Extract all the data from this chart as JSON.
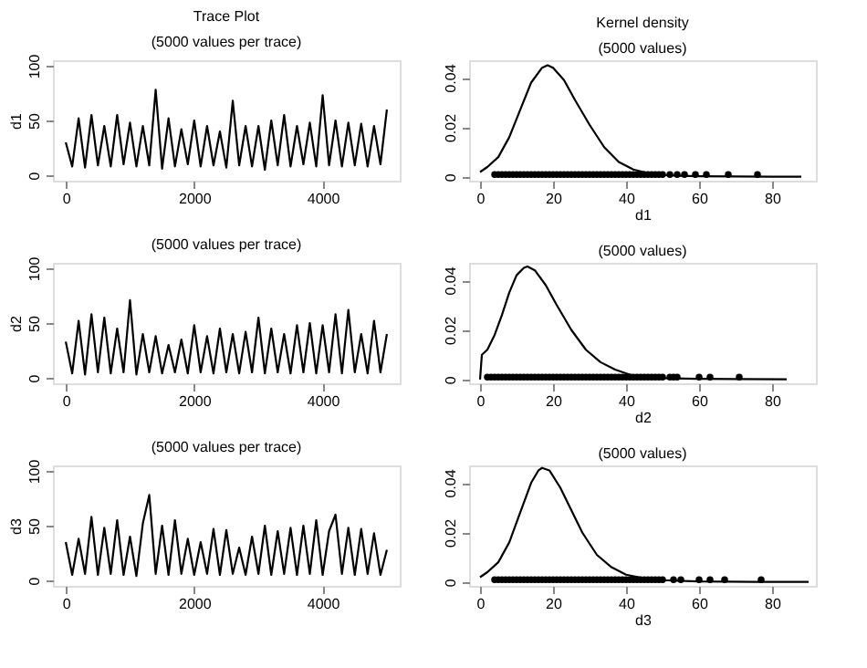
{
  "chart_data": [
    {
      "type": "line",
      "title": "Trace Plot",
      "subtitle": "(5000 values per trace)",
      "ylabel": "d1",
      "xlim": [
        -200,
        5200
      ],
      "ylim": [
        -5,
        105
      ],
      "xticks": [
        0,
        2000,
        4000
      ],
      "yticks": [
        0,
        50,
        100
      ],
      "grid": false,
      "line_style": "solid",
      "series": [
        {
          "color": "#000000",
          "x": [
            0,
            100,
            200,
            300,
            400,
            500,
            600,
            700,
            800,
            900,
            1000,
            1100,
            1200,
            1300,
            1400,
            1500,
            1600,
            1700,
            1800,
            1900,
            2000,
            2100,
            2200,
            2300,
            2400,
            2500,
            2600,
            2700,
            2800,
            2900,
            3000,
            3100,
            3200,
            3300,
            3400,
            3500,
            3600,
            3700,
            3800,
            3900,
            4000,
            4100,
            4200,
            4300,
            4400,
            4500,
            4600,
            4700,
            4800,
            4900,
            5000
          ],
          "values": [
            30,
            8,
            52,
            7,
            55,
            9,
            45,
            8,
            55,
            10,
            48,
            8,
            45,
            9,
            78,
            6,
            52,
            8,
            42,
            10,
            50,
            8,
            45,
            9,
            40,
            7,
            68,
            9,
            45,
            8,
            45,
            5,
            50,
            9,
            55,
            8,
            45,
            10,
            48,
            8,
            73,
            9,
            50,
            8,
            48,
            9,
            47,
            8,
            45,
            10,
            60
          ]
        }
      ]
    },
    {
      "type": "line",
      "title": "Kernel density",
      "subtitle": "(5000 values)",
      "xlabel": "d1",
      "xlim": [
        -3,
        92
      ],
      "ylim": [
        -0.0015,
        0.047
      ],
      "xticks": [
        0,
        20,
        40,
        60,
        80
      ],
      "yticks": [
        0,
        0.02,
        0.04
      ],
      "grid": false,
      "line_style": "solid",
      "series": [
        {
          "color": "#000000",
          "x": [
            0,
            2,
            5,
            8,
            11,
            14,
            17,
            18.5,
            20,
            23,
            26,
            30,
            34,
            38,
            42,
            46,
            50,
            55,
            60,
            70,
            80,
            88
          ],
          "values": [
            0.002,
            0.004,
            0.008,
            0.016,
            0.027,
            0.038,
            0.044,
            0.045,
            0.044,
            0.039,
            0.031,
            0.021,
            0.012,
            0.006,
            0.003,
            0.0015,
            0.0008,
            0.0005,
            0.0003,
            0.0002,
            0.0001,
            0.0001
          ]
        },
        {
          "type": "scatter",
          "marker": "circle",
          "color": "#000000",
          "x": [
            4,
            5,
            6,
            7,
            8,
            9,
            10,
            11,
            12,
            13,
            14,
            15,
            16,
            17,
            18,
            19,
            20,
            21,
            22,
            23,
            24,
            25,
            26,
            27,
            28,
            29,
            30,
            31,
            32,
            33,
            34,
            35,
            36,
            37,
            38,
            39,
            40,
            41,
            42,
            43,
            44,
            45,
            46,
            47,
            48,
            49,
            50,
            52,
            54,
            56,
            59,
            62,
            68,
            76
          ],
          "values": [
            0.001,
            0.001,
            0.001,
            0.001,
            0.001,
            0.001,
            0.001,
            0.001,
            0.001,
            0.001,
            0.001,
            0.001,
            0.001,
            0.001,
            0.001,
            0.001,
            0.001,
            0.001,
            0.001,
            0.001,
            0.001,
            0.001,
            0.001,
            0.001,
            0.001,
            0.001,
            0.001,
            0.001,
            0.001,
            0.001,
            0.001,
            0.001,
            0.001,
            0.001,
            0.001,
            0.001,
            0.001,
            0.001,
            0.001,
            0.001,
            0.001,
            0.001,
            0.001,
            0.001,
            0.001,
            0.001,
            0.001,
            0.001,
            0.001,
            0.001,
            0.001,
            0.001,
            0.001,
            0.001
          ]
        }
      ]
    },
    {
      "type": "line",
      "subtitle": "(5000 values per trace)",
      "ylabel": "d2",
      "xlim": [
        -200,
        5200
      ],
      "ylim": [
        -5,
        105
      ],
      "xticks": [
        0,
        2000,
        4000
      ],
      "yticks": [
        0,
        50,
        100
      ],
      "grid": false,
      "line_style": "solid",
      "series": [
        {
          "color": "#000000",
          "x": [
            0,
            100,
            200,
            300,
            400,
            500,
            600,
            700,
            800,
            900,
            1000,
            1100,
            1200,
            1300,
            1400,
            1500,
            1600,
            1700,
            1800,
            1900,
            2000,
            2100,
            2200,
            2300,
            2400,
            2500,
            2600,
            2700,
            2800,
            2900,
            3000,
            3100,
            3200,
            3300,
            3400,
            3500,
            3600,
            3700,
            3800,
            3900,
            4000,
            4100,
            4200,
            4300,
            4400,
            4500,
            4600,
            4700,
            4800,
            4900,
            5000
          ],
          "values": [
            33,
            4,
            52,
            3,
            58,
            5,
            55,
            4,
            45,
            5,
            71,
            3,
            40,
            5,
            38,
            4,
            30,
            5,
            35,
            4,
            48,
            5,
            38,
            4,
            45,
            5,
            40,
            4,
            42,
            5,
            55,
            4,
            45,
            5,
            40,
            4,
            48,
            5,
            50,
            4,
            48,
            5,
            58,
            4,
            62,
            5,
            40,
            4,
            52,
            5,
            40
          ]
        }
      ]
    },
    {
      "type": "line",
      "subtitle": "(5000 values)",
      "xlabel": "d2",
      "xlim": [
        -3,
        92
      ],
      "ylim": [
        -0.0015,
        0.047
      ],
      "xticks": [
        0,
        20,
        40,
        60,
        80
      ],
      "yticks": [
        0,
        0.02,
        0.04
      ],
      "grid": false,
      "line_style": "solid",
      "series": [
        {
          "color": "#000000",
          "x": [
            0,
            0.5,
            2,
            4,
            6,
            8,
            10,
            12,
            13,
            15,
            18,
            21,
            25,
            29,
            33,
            37,
            41,
            45,
            50,
            60,
            70,
            84
          ],
          "values": [
            0.0,
            0.01,
            0.012,
            0.018,
            0.026,
            0.035,
            0.042,
            0.045,
            0.0455,
            0.044,
            0.038,
            0.03,
            0.02,
            0.012,
            0.007,
            0.004,
            0.002,
            0.001,
            0.0006,
            0.0003,
            0.0002,
            0.0001
          ]
        },
        {
          "type": "scatter",
          "marker": "circle",
          "color": "#000000",
          "x": [
            2,
            3,
            4,
            5,
            6,
            7,
            8,
            9,
            10,
            11,
            12,
            13,
            14,
            15,
            16,
            17,
            18,
            19,
            20,
            21,
            22,
            23,
            24,
            25,
            26,
            27,
            28,
            29,
            30,
            31,
            32,
            33,
            34,
            35,
            36,
            37,
            38,
            39,
            40,
            41,
            42,
            43,
            44,
            45,
            46,
            47,
            48,
            49,
            50,
            52,
            53,
            54,
            60,
            63,
            71
          ],
          "values": [
            0.001,
            0.001,
            0.001,
            0.001,
            0.001,
            0.001,
            0.001,
            0.001,
            0.001,
            0.001,
            0.001,
            0.001,
            0.001,
            0.001,
            0.001,
            0.001,
            0.001,
            0.001,
            0.001,
            0.001,
            0.001,
            0.001,
            0.001,
            0.001,
            0.001,
            0.001,
            0.001,
            0.001,
            0.001,
            0.001,
            0.001,
            0.001,
            0.001,
            0.001,
            0.001,
            0.001,
            0.001,
            0.001,
            0.001,
            0.001,
            0.001,
            0.001,
            0.001,
            0.001,
            0.001,
            0.001,
            0.001,
            0.001,
            0.001,
            0.001,
            0.001,
            0.001,
            0.001,
            0.001,
            0.001
          ]
        }
      ]
    },
    {
      "type": "line",
      "subtitle": "(5000 values per trace)",
      "ylabel": "d3",
      "xlim": [
        -200,
        5200
      ],
      "ylim": [
        -5,
        105
      ],
      "xticks": [
        0,
        2000,
        4000
      ],
      "yticks": [
        0,
        50,
        100
      ],
      "grid": false,
      "line_style": "solid",
      "series": [
        {
          "color": "#000000",
          "x": [
            0,
            100,
            200,
            300,
            400,
            500,
            600,
            700,
            800,
            900,
            1000,
            1100,
            1200,
            1300,
            1400,
            1500,
            1600,
            1700,
            1800,
            1900,
            2000,
            2100,
            2200,
            2300,
            2400,
            2500,
            2600,
            2700,
            2800,
            2900,
            3000,
            3100,
            3200,
            3300,
            3400,
            3500,
            3600,
            3700,
            3800,
            3900,
            4000,
            4100,
            4200,
            4300,
            4400,
            4500,
            4600,
            4700,
            4800,
            4900,
            5000
          ],
          "values": [
            35,
            5,
            38,
            6,
            58,
            5,
            48,
            6,
            55,
            5,
            40,
            4,
            52,
            78,
            6,
            50,
            5,
            55,
            6,
            38,
            5,
            35,
            6,
            47,
            5,
            46,
            6,
            30,
            5,
            40,
            6,
            50,
            5,
            45,
            6,
            48,
            5,
            50,
            6,
            55,
            5,
            45,
            60,
            6,
            48,
            5,
            47,
            6,
            43,
            5,
            28
          ]
        }
      ]
    },
    {
      "type": "line",
      "subtitle": "(5000 values)",
      "xlabel": "d3",
      "xlim": [
        -3,
        92
      ],
      "ylim": [
        -0.0015,
        0.047
      ],
      "xticks": [
        0,
        20,
        40,
        60,
        80
      ],
      "yticks": [
        0,
        0.02,
        0.04
      ],
      "grid": false,
      "line_style": "solid",
      "series": [
        {
          "color": "#000000",
          "x": [
            0,
            2,
            5,
            8,
            11,
            14,
            16,
            17,
            19,
            22,
            25,
            28,
            32,
            36,
            40,
            45,
            50,
            60,
            75,
            90
          ],
          "values": [
            0.002,
            0.004,
            0.008,
            0.016,
            0.028,
            0.04,
            0.045,
            0.046,
            0.045,
            0.038,
            0.029,
            0.02,
            0.011,
            0.006,
            0.003,
            0.0015,
            0.0008,
            0.0003,
            0.0001,
            0.0001
          ]
        },
        {
          "type": "scatter",
          "marker": "circle",
          "color": "#000000",
          "x": [
            4,
            5,
            6,
            7,
            8,
            9,
            10,
            11,
            12,
            13,
            14,
            15,
            16,
            17,
            18,
            19,
            20,
            21,
            22,
            23,
            24,
            25,
            26,
            27,
            28,
            29,
            30,
            31,
            32,
            33,
            34,
            35,
            36,
            37,
            38,
            39,
            40,
            41,
            42,
            43,
            44,
            45,
            46,
            47,
            48,
            49,
            50,
            53,
            55,
            60,
            63,
            67,
            77
          ],
          "values": [
            0.001,
            0.001,
            0.001,
            0.001,
            0.001,
            0.001,
            0.001,
            0.001,
            0.001,
            0.001,
            0.001,
            0.001,
            0.001,
            0.001,
            0.001,
            0.001,
            0.001,
            0.001,
            0.001,
            0.001,
            0.001,
            0.001,
            0.001,
            0.001,
            0.001,
            0.001,
            0.001,
            0.001,
            0.001,
            0.001,
            0.001,
            0.001,
            0.001,
            0.001,
            0.001,
            0.001,
            0.001,
            0.001,
            0.001,
            0.001,
            0.001,
            0.001,
            0.001,
            0.001,
            0.001,
            0.001,
            0.001,
            0.001,
            0.001,
            0.001,
            0.001,
            0.001,
            0.001
          ]
        }
      ]
    }
  ]
}
